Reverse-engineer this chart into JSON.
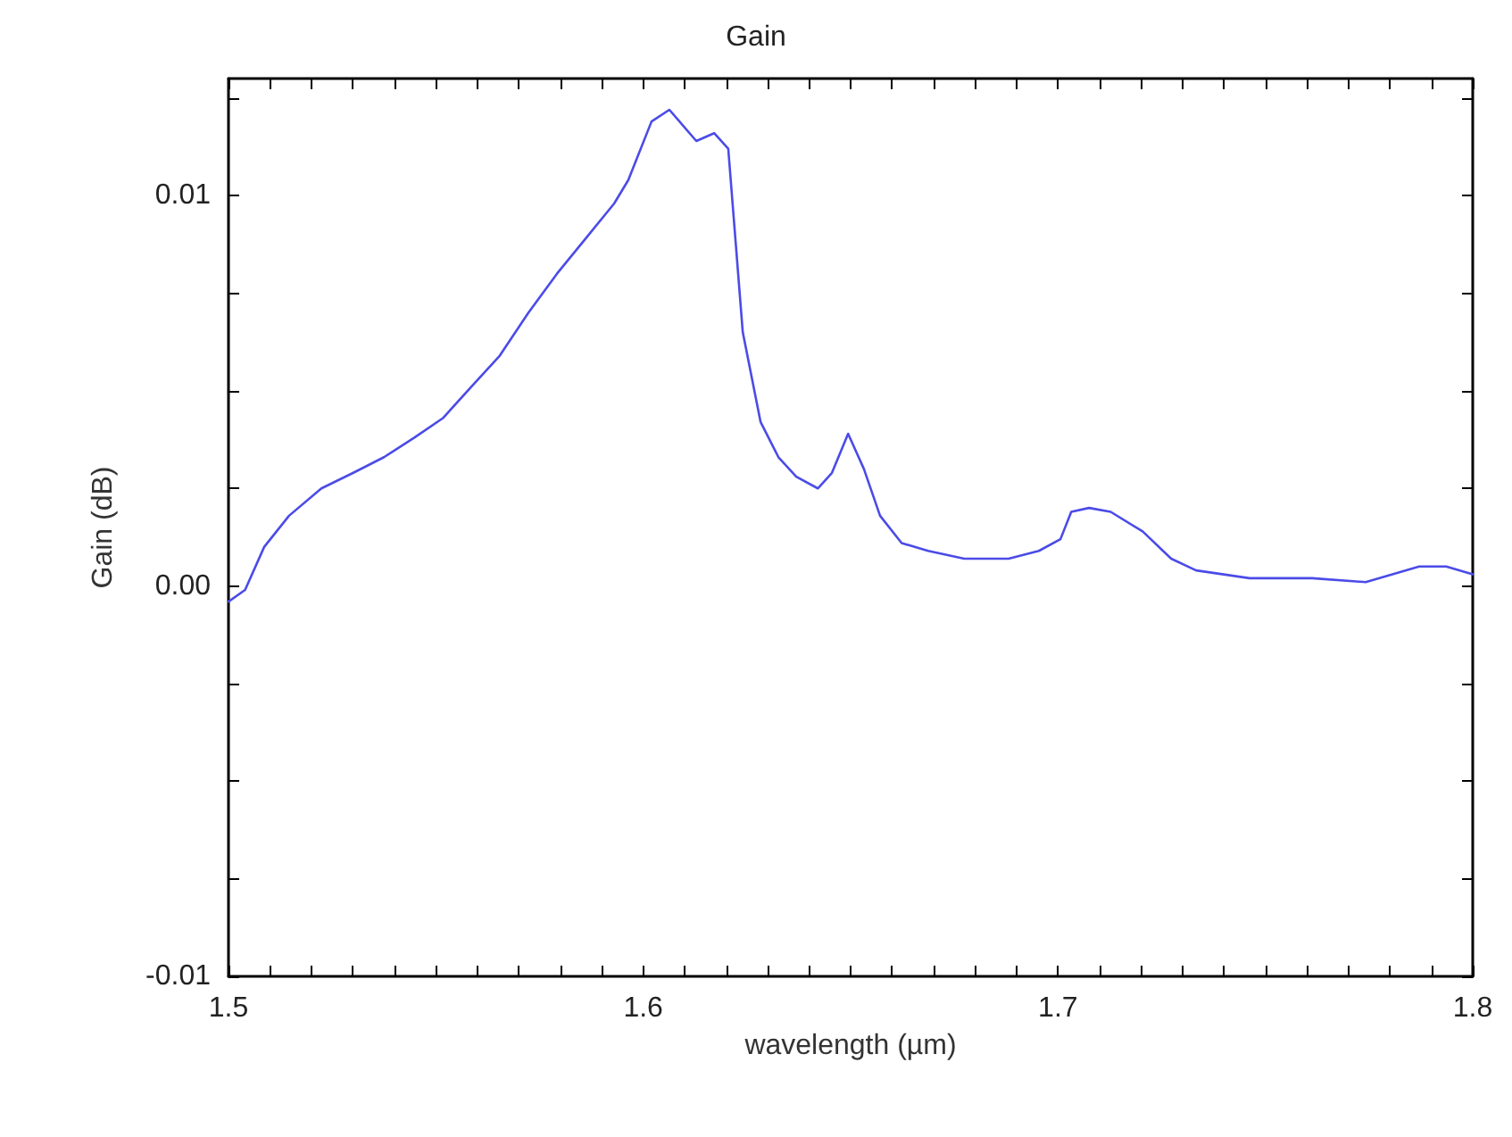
{
  "chart_data": {
    "type": "line",
    "title": "Gain",
    "xlabel": "wavelength (µm)",
    "ylabel": "Gain (dB)",
    "xlim": [
      1.5,
      1.8
    ],
    "ylim": [
      -0.01,
      0.013
    ],
    "xticks": [
      1.5,
      {
        "value": 1.51,
        "label": null
      },
      {
        "value": 1.52,
        "label": null
      },
      {
        "value": 1.53,
        "label": null
      },
      {
        "value": 1.54,
        "label": null
      },
      {
        "value": 1.55,
        "label": null
      },
      {
        "value": 1.56,
        "label": null
      },
      {
        "value": 1.57,
        "label": null
      },
      {
        "value": 1.58,
        "label": null
      },
      {
        "value": 1.59,
        "label": null
      },
      1.6,
      {
        "value": 1.61,
        "label": null
      },
      {
        "value": 1.62,
        "label": null
      },
      {
        "value": 1.63,
        "label": null
      },
      {
        "value": 1.64,
        "label": null
      },
      {
        "value": 1.65,
        "label": null
      },
      {
        "value": 1.66,
        "label": null
      },
      {
        "value": 1.67,
        "label": null
      },
      {
        "value": 1.68,
        "label": null
      },
      {
        "value": 1.69,
        "label": null
      },
      1.7,
      {
        "value": 1.71,
        "label": null
      },
      {
        "value": 1.72,
        "label": null
      },
      {
        "value": 1.73,
        "label": null
      },
      {
        "value": 1.74,
        "label": null
      },
      {
        "value": 1.75,
        "label": null
      },
      {
        "value": 1.76,
        "label": null
      },
      {
        "value": 1.77,
        "label": null
      },
      {
        "value": 1.78,
        "label": null
      },
      {
        "value": 1.79,
        "label": null
      },
      1.8
    ],
    "yticks": [
      -0.01,
      {
        "value": -0.0075,
        "label": null
      },
      {
        "value": -0.005,
        "label": null
      },
      {
        "value": -0.0025,
        "label": null
      },
      {
        "value": 0,
        "label": "0.00"
      },
      {
        "value": 0.0025,
        "label": null
      },
      {
        "value": 0.005,
        "label": null
      },
      {
        "value": 0.0075,
        "label": null
      },
      0.01,
      {
        "value": 0.0125,
        "label": null
      }
    ],
    "grid": false,
    "marker": "none",
    "line_style": "solid",
    "series": [
      {
        "color": "#4b4be8",
        "x": [
          1.5,
          1.504,
          1.5086,
          1.5146,
          1.5224,
          1.5301,
          1.5375,
          1.5448,
          1.5517,
          1.5585,
          1.5654,
          1.5723,
          1.5792,
          1.5861,
          1.593,
          1.5964,
          1.602,
          1.6063,
          1.6128,
          1.6171,
          1.6205,
          1.624,
          1.6283,
          1.6326,
          1.6369,
          1.6421,
          1.6455,
          1.6494,
          1.6532,
          1.6571,
          1.6623,
          1.6687,
          1.6774,
          1.6881,
          1.6954,
          1.7006,
          1.7032,
          1.7075,
          1.7127,
          1.7204,
          1.7273,
          1.7333,
          1.7462,
          1.7613,
          1.7742,
          1.7871,
          1.7936,
          1.8
        ],
        "values": [
          -0.0004,
          -0.0001,
          0.001,
          0.0018,
          0.0025,
          0.0029,
          0.0033,
          0.0038,
          0.0043,
          0.0051,
          0.0059,
          0.007,
          0.008,
          0.0089,
          0.0098,
          0.0104,
          0.0119,
          0.0122,
          0.0114,
          0.0116,
          0.0112,
          0.0065,
          0.0042,
          0.0033,
          0.0028,
          0.0025,
          0.0029,
          0.0039,
          0.003,
          0.0018,
          0.0011,
          0.0009,
          0.0007,
          0.0007,
          0.0009,
          0.0012,
          0.0019,
          0.002,
          0.0019,
          0.0014,
          0.0007,
          0.0004,
          0.0002,
          0.0002,
          0.0001,
          0.0005,
          0.0005,
          0.0003
        ]
      }
    ]
  }
}
